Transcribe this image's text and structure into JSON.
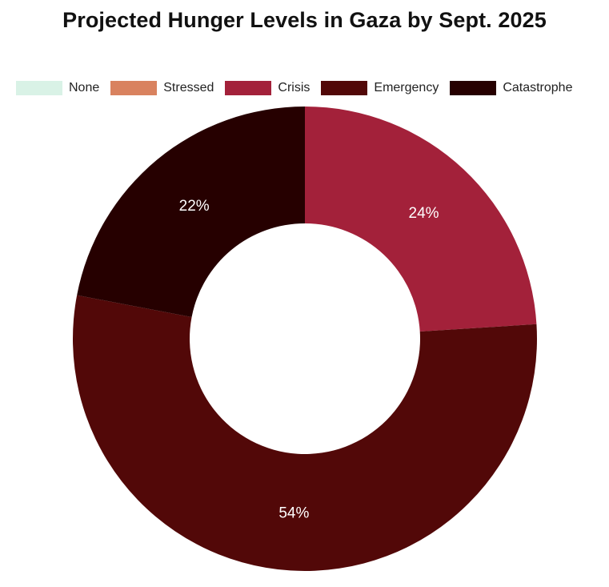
{
  "chart_data": {
    "type": "pie",
    "title": "Projected Hunger Levels in Gaza by Sept. 2025",
    "legend_position": "top",
    "donut": true,
    "categories": [
      "None",
      "Stressed",
      "Crisis",
      "Emergency",
      "Catastrophe"
    ],
    "values": [
      0,
      0,
      24,
      54,
      22
    ],
    "labels": [
      "",
      "",
      "24%",
      "54%",
      "22%"
    ],
    "colors": [
      "#d9f2e6",
      "#d9825f",
      "#a3213a",
      "#520808",
      "#260000"
    ]
  }
}
